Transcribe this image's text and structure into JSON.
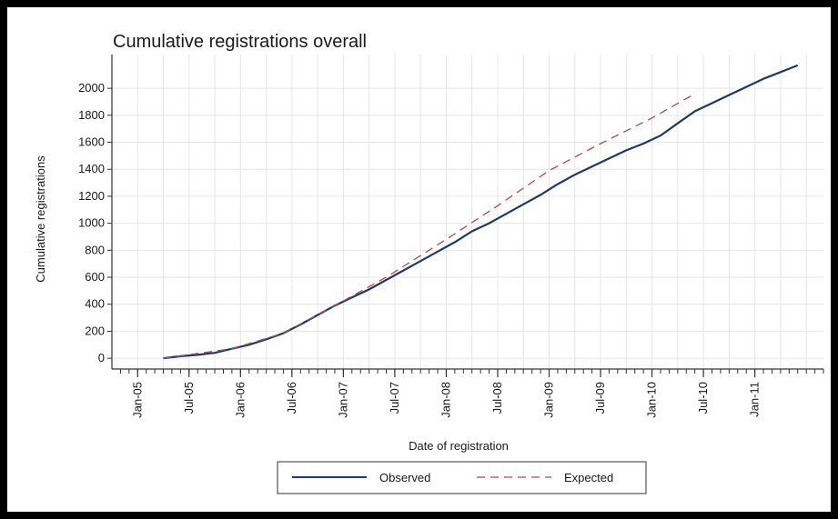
{
  "chart_data": {
    "type": "line",
    "title": "Cumulative registrations overall",
    "xlabel": "Date of registration",
    "ylabel": "Cumulative registrations",
    "x_ticks": [
      "Jan-05",
      "Jul-05",
      "Jan-06",
      "Jul-06",
      "Jan-07",
      "Jul-07",
      "Jan-08",
      "Jul-08",
      "Jan-09",
      "Jul-09",
      "Jan-10",
      "Jul-10",
      "Jan-11"
    ],
    "y_ticks": [
      0,
      200,
      400,
      600,
      800,
      1000,
      1200,
      1400,
      1600,
      1800,
      2000
    ],
    "xlim": [
      "2004-10",
      "2011-09"
    ],
    "ylim": [
      -80,
      2250
    ],
    "grid": true,
    "legend_position": "bottom",
    "colors": {
      "observed": "#1f3a68",
      "expected": "#b24a4a"
    },
    "series": [
      {
        "name": "Observed",
        "style": "solid",
        "points": [
          [
            "2005-04",
            0
          ],
          [
            "2005-06",
            15
          ],
          [
            "2005-08",
            25
          ],
          [
            "2005-10",
            40
          ],
          [
            "2005-12",
            70
          ],
          [
            "2006-02",
            100
          ],
          [
            "2006-04",
            140
          ],
          [
            "2006-06",
            185
          ],
          [
            "2006-08",
            250
          ],
          [
            "2006-10",
            320
          ],
          [
            "2006-12",
            390
          ],
          [
            "2007-02",
            450
          ],
          [
            "2007-04",
            510
          ],
          [
            "2007-06",
            580
          ],
          [
            "2007-08",
            650
          ],
          [
            "2007-10",
            720
          ],
          [
            "2007-12",
            790
          ],
          [
            "2008-02",
            860
          ],
          [
            "2008-04",
            940
          ],
          [
            "2008-06",
            1000
          ],
          [
            "2008-08",
            1070
          ],
          [
            "2008-10",
            1140
          ],
          [
            "2008-12",
            1210
          ],
          [
            "2009-02",
            1290
          ],
          [
            "2009-04",
            1360
          ],
          [
            "2009-06",
            1420
          ],
          [
            "2009-08",
            1480
          ],
          [
            "2009-10",
            1540
          ],
          [
            "2009-12",
            1590
          ],
          [
            "2010-02",
            1650
          ],
          [
            "2010-04",
            1740
          ],
          [
            "2010-06",
            1830
          ],
          [
            "2010-08",
            1890
          ],
          [
            "2010-10",
            1950
          ],
          [
            "2010-12",
            2010
          ],
          [
            "2011-02",
            2070
          ],
          [
            "2011-04",
            2120
          ],
          [
            "2011-06",
            2170
          ]
        ]
      },
      {
        "name": "Expected",
        "style": "dashed",
        "points": [
          [
            "2005-04",
            0
          ],
          [
            "2005-12",
            70
          ],
          [
            "2006-06",
            185
          ],
          [
            "2006-12",
            390
          ],
          [
            "2007-06",
            600
          ],
          [
            "2008-01",
            880
          ],
          [
            "2008-07",
            1130
          ],
          [
            "2009-01",
            1390
          ],
          [
            "2009-07",
            1590
          ],
          [
            "2010-01",
            1780
          ],
          [
            "2010-06",
            1960
          ]
        ]
      }
    ]
  }
}
